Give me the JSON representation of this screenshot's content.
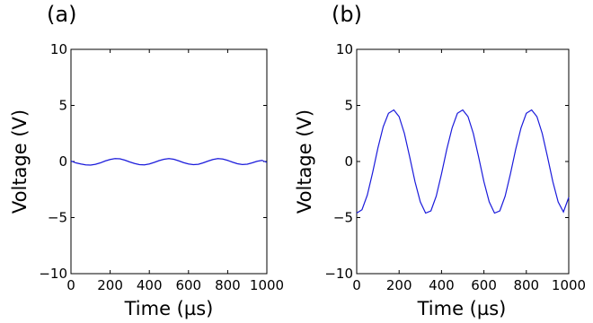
{
  "chart_data": [
    {
      "type": "line",
      "panel_label": "(a)",
      "xlabel": "Time (µs)",
      "ylabel": "Voltage (V)",
      "xlim": [
        0,
        1000
      ],
      "ylim": [
        -10,
        10
      ],
      "x_ticks": [
        0,
        200,
        400,
        600,
        800,
        1000
      ],
      "y_ticks": [
        -10,
        -5,
        0,
        5,
        10
      ],
      "x_tick_labels": [
        "0",
        "200",
        "400",
        "600",
        "800",
        "1000"
      ],
      "y_tick_labels": [
        "−10",
        "−5",
        "0",
        "5",
        "10"
      ],
      "grid": false,
      "series": [
        {
          "color": "#1a1adb",
          "x": [
            0,
            25,
            50,
            75,
            100,
            125,
            150,
            175,
            200,
            225,
            250,
            275,
            300,
            325,
            350,
            375,
            400,
            425,
            450,
            475,
            500,
            525,
            550,
            575,
            600,
            625,
            650,
            675,
            700,
            725,
            750,
            775,
            800,
            825,
            850,
            875,
            900,
            925,
            950,
            975,
            1000
          ],
          "y": [
            0.05,
            -0.12,
            -0.22,
            -0.3,
            -0.32,
            -0.25,
            -0.12,
            0.05,
            0.18,
            0.26,
            0.24,
            0.12,
            -0.04,
            -0.18,
            -0.28,
            -0.3,
            -0.22,
            -0.08,
            0.08,
            0.2,
            0.26,
            0.2,
            0.06,
            -0.1,
            -0.22,
            -0.28,
            -0.25,
            -0.12,
            0.04,
            0.18,
            0.26,
            0.22,
            0.1,
            -0.06,
            -0.2,
            -0.27,
            -0.24,
            -0.12,
            0.02,
            0.1,
            -0.08
          ]
        }
      ]
    },
    {
      "type": "line",
      "panel_label": "(b)",
      "xlabel": "Time (µs)",
      "ylabel": "Voltage (V)",
      "xlim": [
        0,
        1000
      ],
      "ylim": [
        -10,
        10
      ],
      "x_ticks": [
        0,
        200,
        400,
        600,
        800,
        1000
      ],
      "y_ticks": [
        -10,
        -5,
        0,
        5,
        10
      ],
      "x_tick_labels": [
        "0",
        "200",
        "400",
        "600",
        "800",
        "1000"
      ],
      "y_tick_labels": [
        "−10",
        "−5",
        "0",
        "5",
        "10"
      ],
      "grid": false,
      "series": [
        {
          "color": "#1a1adb",
          "x": [
            0,
            25,
            50,
            75,
            100,
            125,
            150,
            175,
            200,
            225,
            250,
            275,
            300,
            325,
            350,
            375,
            400,
            425,
            450,
            475,
            500,
            525,
            550,
            575,
            600,
            625,
            650,
            675,
            700,
            725,
            750,
            775,
            800,
            825,
            850,
            875,
            900,
            925,
            950,
            975,
            1000
          ],
          "y": [
            -4.6,
            -4.3,
            -3.0,
            -1.0,
            1.2,
            3.1,
            4.3,
            4.6,
            4.0,
            2.5,
            0.4,
            -1.8,
            -3.6,
            -4.6,
            -4.4,
            -3.1,
            -1.1,
            1.1,
            3.0,
            4.3,
            4.6,
            4.0,
            2.5,
            0.4,
            -1.8,
            -3.6,
            -4.6,
            -4.4,
            -3.1,
            -1.1,
            1.1,
            3.0,
            4.3,
            4.6,
            4.0,
            2.5,
            0.4,
            -1.8,
            -3.6,
            -4.5,
            -3.2
          ]
        }
      ]
    }
  ]
}
